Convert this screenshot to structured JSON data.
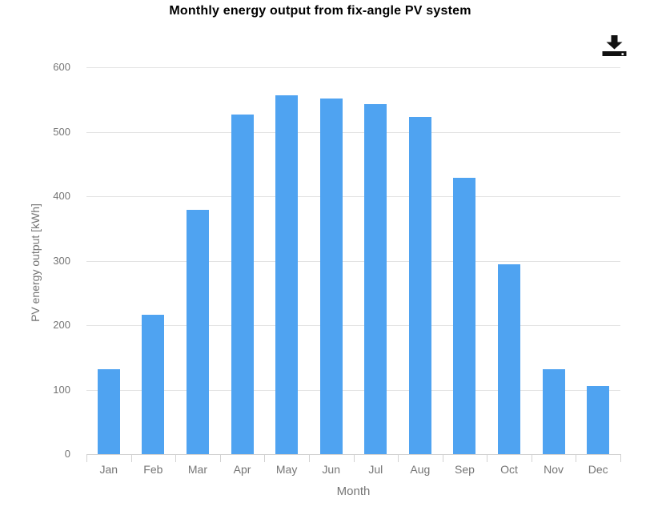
{
  "page": {
    "background": "#ffffff"
  },
  "toolbar": {
    "download_button": {
      "icon": "download-icon",
      "color": "#111111"
    }
  },
  "chart_data": {
    "type": "bar",
    "title": "Monthly energy output from fix-angle PV system",
    "categories": [
      "Jan",
      "Feb",
      "Mar",
      "Apr",
      "May",
      "Jun",
      "Jul",
      "Aug",
      "Sep",
      "Oct",
      "Nov",
      "Dec"
    ],
    "values": [
      132,
      216,
      379,
      527,
      557,
      552,
      543,
      523,
      428,
      294,
      132,
      106
    ],
    "xlabel": "Month",
    "ylabel": "PV energy output [kWh]",
    "ylim": [
      0,
      620
    ],
    "yticks": [
      0,
      100,
      200,
      300,
      400,
      500,
      600
    ],
    "grid": true,
    "legend": false,
    "colors": {
      "bar": "#4fa3f1",
      "grid": "#e3e3e3",
      "axis": "#d2d2d2",
      "tick_text": "#757575",
      "title_text": "#000000"
    }
  }
}
